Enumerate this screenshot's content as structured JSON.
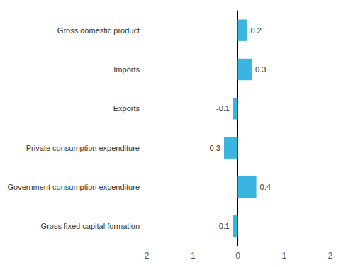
{
  "chart_data": {
    "type": "bar",
    "orientation": "horizontal",
    "categories": [
      "Gross fixed capital formation",
      "Government consumption expenditure",
      "Private consumption expenditure",
      "Exports",
      "Imports",
      "Gross domestic product"
    ],
    "values": [
      -0.1,
      0.4,
      -0.3,
      -0.1,
      0.3,
      0.2
    ],
    "color": "#3ab4e0",
    "xlim": [
      -2,
      2
    ],
    "xticks": [
      -2,
      -1,
      0,
      1,
      2
    ],
    "grid": false,
    "data_labels": true
  }
}
